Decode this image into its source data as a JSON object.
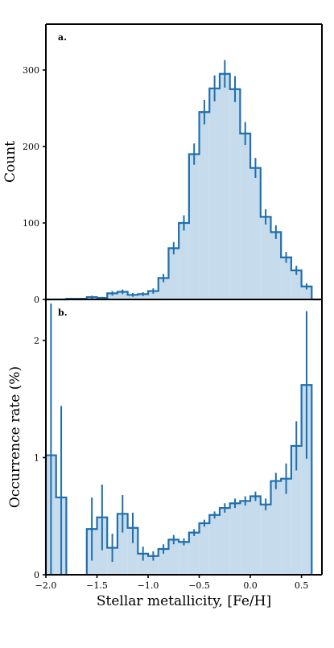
{
  "colors": {
    "line": "#1f6fad",
    "fill": "#c6dcec",
    "axis": "#000000"
  },
  "chart_data": [
    {
      "type": "histogram",
      "panel_label": "a.",
      "ylabel": "Count",
      "xlim": [
        -2.0,
        0.7
      ],
      "ylim": [
        0,
        360
      ],
      "yticks": [
        0,
        100,
        200,
        300
      ],
      "bin_width": 0.1,
      "bin_left_edges": [
        -2.0,
        -1.9,
        -1.8,
        -1.7,
        -1.6,
        -1.5,
        -1.4,
        -1.3,
        -1.2,
        -1.1,
        -1.0,
        -0.9,
        -0.8,
        -0.7,
        -0.6,
        -0.5,
        -0.4,
        -0.3,
        -0.2,
        -0.1,
        0.0,
        0.1,
        0.2,
        0.3,
        0.4,
        0.5,
        0.6
      ],
      "values": [
        0,
        0,
        1,
        1,
        3,
        2,
        8,
        10,
        6,
        7,
        11,
        28,
        67,
        100,
        190,
        245,
        276,
        295,
        275,
        217,
        172,
        108,
        88,
        55,
        38,
        17,
        0
      ],
      "errors": [
        0,
        0,
        1,
        1,
        2,
        1.5,
        3,
        3,
        2.5,
        2.5,
        3.5,
        5.5,
        8,
        10,
        14,
        16,
        17,
        18,
        17,
        15,
        13,
        10,
        9,
        7,
        6,
        4,
        0
      ]
    },
    {
      "type": "histogram",
      "panel_label": "b.",
      "xlabel": "Stellar metallicity, [Fe/H]",
      "ylabel": "Occurrence rate (%)",
      "xlim": [
        -2.0,
        0.7
      ],
      "ylim": [
        0,
        2.35
      ],
      "yticks": [
        0,
        1,
        2
      ],
      "xticks": [
        -2.0,
        -1.5,
        -1.0,
        -0.5,
        0.0,
        0.5
      ],
      "xtick_labels": [
        "−2.0",
        "−1.5",
        "−1.0",
        "−0.5",
        "0.0",
        "0.5"
      ],
      "bin_width": 0.1,
      "bin_left_edges": [
        -2.0,
        -1.9,
        -1.8,
        -1.7,
        -1.6,
        -1.5,
        -1.4,
        -1.3,
        -1.2,
        -1.1,
        -1.0,
        -0.9,
        -0.8,
        -0.7,
        -0.6,
        -0.5,
        -0.4,
        -0.3,
        -0.2,
        -0.1,
        0.0,
        0.1,
        0.2,
        0.3,
        0.4,
        0.5,
        0.6
      ],
      "values": [
        1.02,
        0.66,
        0,
        0,
        0.39,
        0.49,
        0.23,
        0.52,
        0.4,
        0.18,
        0.16,
        0.22,
        0.3,
        0.28,
        0.36,
        0.44,
        0.51,
        0.57,
        0.61,
        0.63,
        0.67,
        0.6,
        0.8,
        0.82,
        1.1,
        1.62,
        0
      ],
      "errors": [
        1.3,
        0.78,
        0,
        0,
        0.27,
        0.28,
        0.12,
        0.16,
        0.13,
        0.06,
        0.04,
        0.04,
        0.04,
        0.03,
        0.03,
        0.03,
        0.03,
        0.04,
        0.04,
        0.04,
        0.04,
        0.05,
        0.07,
        0.13,
        0.21,
        0.63,
        0
      ]
    }
  ]
}
